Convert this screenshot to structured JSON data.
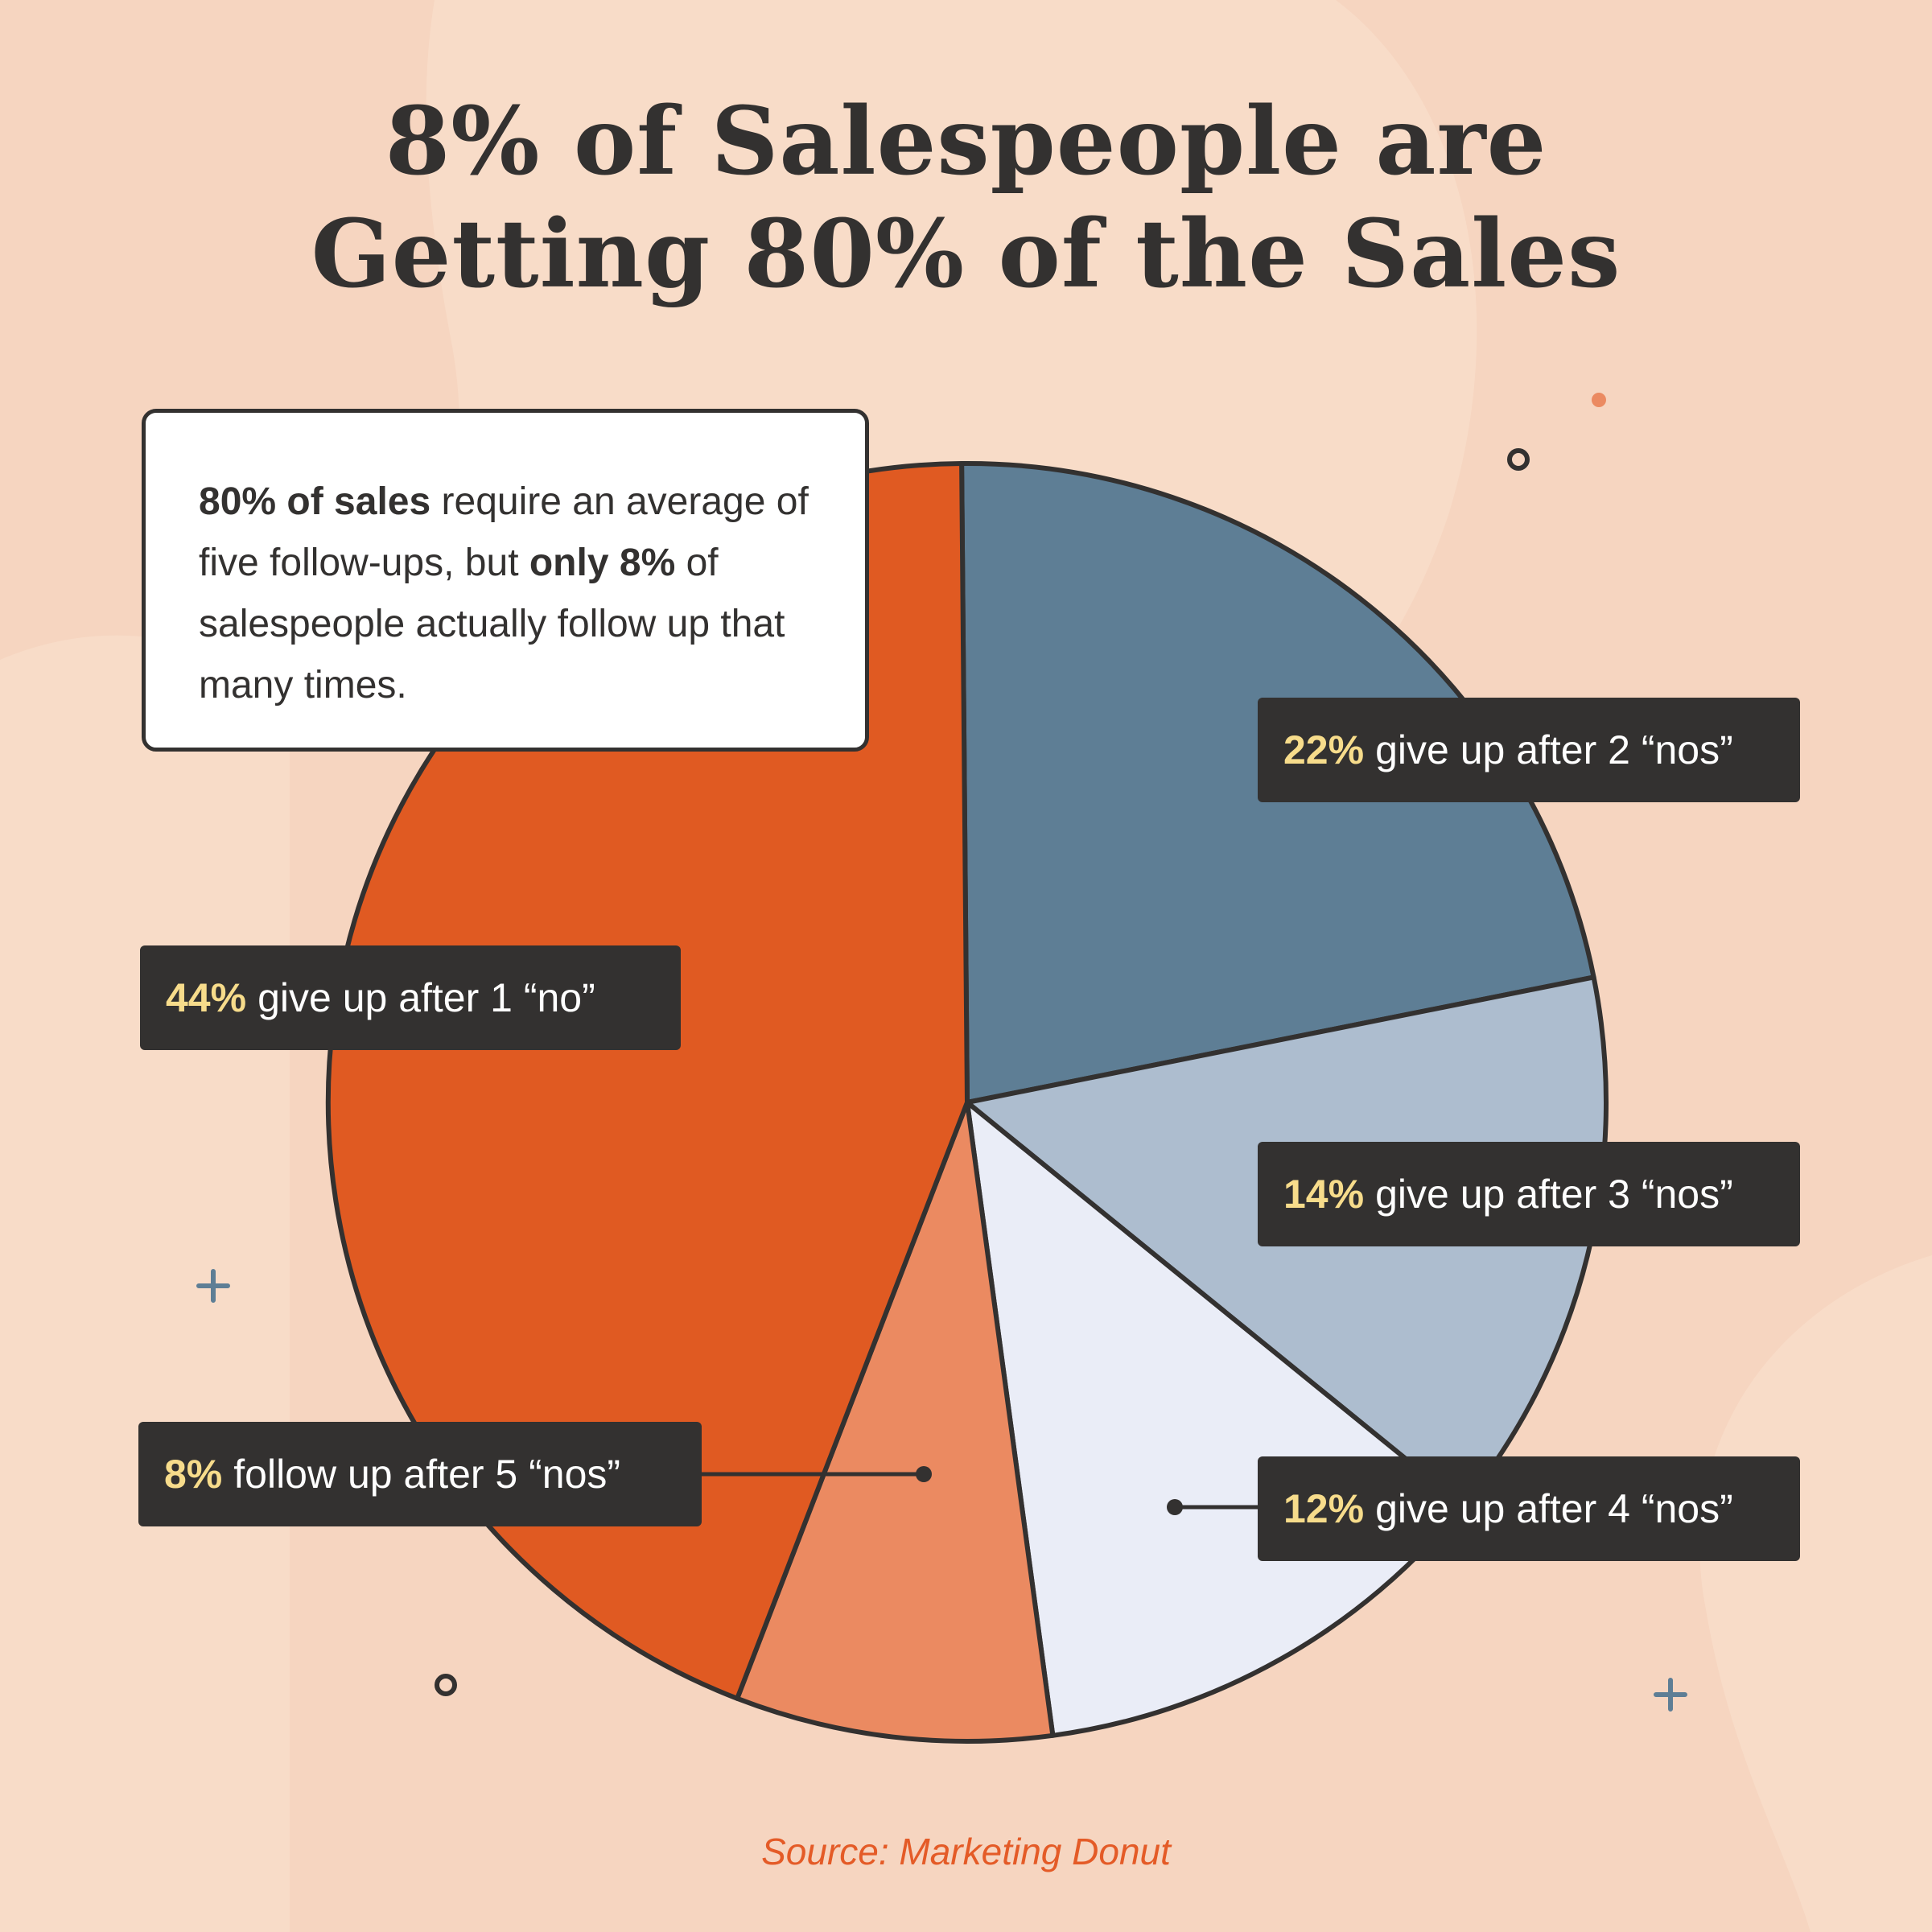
{
  "title_lines": [
    "8% of Salespeople are",
    "Getting 80% of the Sales"
  ],
  "note": {
    "bold_1": "80% of sales",
    "text_1": " require an average of five follow-ups, but ",
    "bold_2": "only 8%",
    "text_2": " of salespeople actually follow up that many times."
  },
  "source": "Source: Marketing Donut",
  "colors": {
    "background": "#f6d5c0",
    "blob": "#f8dcc8",
    "outline": "#333130",
    "label_bg": "#333130",
    "highlight": "#f7dc8b",
    "source": "#e45b27"
  },
  "chart_data": {
    "type": "pie",
    "title": "8% of Salespeople are Getting 80% of the Sales",
    "slices": [
      {
        "value": 44,
        "label_pct": "44%",
        "label_text": "give up after 1 “no”",
        "color": "#e05a22"
      },
      {
        "value": 22,
        "label_pct": "22%",
        "label_text": "give up after 2 “nos”",
        "color": "#5e7e95"
      },
      {
        "value": 14,
        "label_pct": "14%",
        "label_text": "give up after 3 “nos”",
        "color": "#adbdcf"
      },
      {
        "value": 12,
        "label_pct": "12%",
        "label_text": "give up after 4 “nos”",
        "color": "#eaedf7"
      },
      {
        "value": 8,
        "label_pct": "8%",
        "label_text": "follow up after 5 “nos”",
        "color": "#eb8a61"
      }
    ]
  }
}
